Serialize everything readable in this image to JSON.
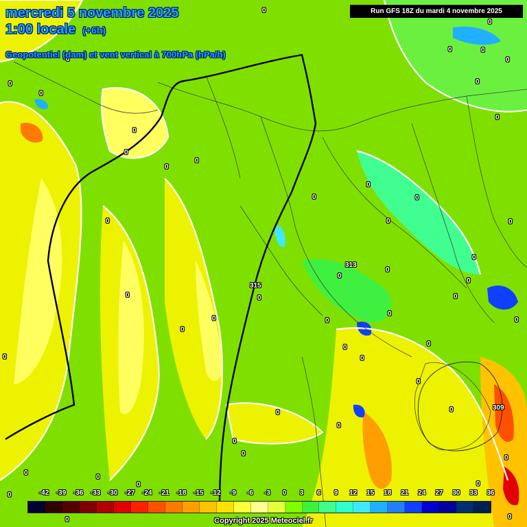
{
  "header": {
    "date": "mercredi 5 novembre 2025",
    "time": "1:00 locale",
    "offset": "(+6h)",
    "parameter": "Geopotentiel (dam) et vent vertical à 700hPa (hPa/h)",
    "run": "Run GFS 18Z du mardi 4 novembre 2025"
  },
  "legend": {
    "unit": "hPa/h",
    "values": [
      "-42",
      "-39",
      "-36",
      "-33",
      "-30",
      "-27",
      "-24",
      "-21",
      "-18",
      "-15",
      "-12",
      "-9",
      "-6",
      "-3",
      "0",
      "3",
      "6",
      "9",
      "12",
      "15",
      "18",
      "21",
      "24",
      "27",
      "30",
      "33",
      "36"
    ],
    "colors": [
      "#000033",
      "#330000",
      "#550000",
      "#800000",
      "#b00000",
      "#e00000",
      "#ff2000",
      "#ff5000",
      "#ff7a00",
      "#ff9e00",
      "#ffc200",
      "#ffe000",
      "#ffff40",
      "#ffff90",
      "#e8ff40",
      "#7fff00",
      "#40f040",
      "#40ff90",
      "#30ffd0",
      "#40e8ff",
      "#20b0ff",
      "#2080ff",
      "#1040ff",
      "#0000d0",
      "#0000a0",
      "#003070",
      "#002050"
    ]
  },
  "geopotential_contours": [
    "309",
    "313",
    "315"
  ],
  "field_zero_labels": "0",
  "copyright": "Copyright 2025 Meteociel.fr"
}
